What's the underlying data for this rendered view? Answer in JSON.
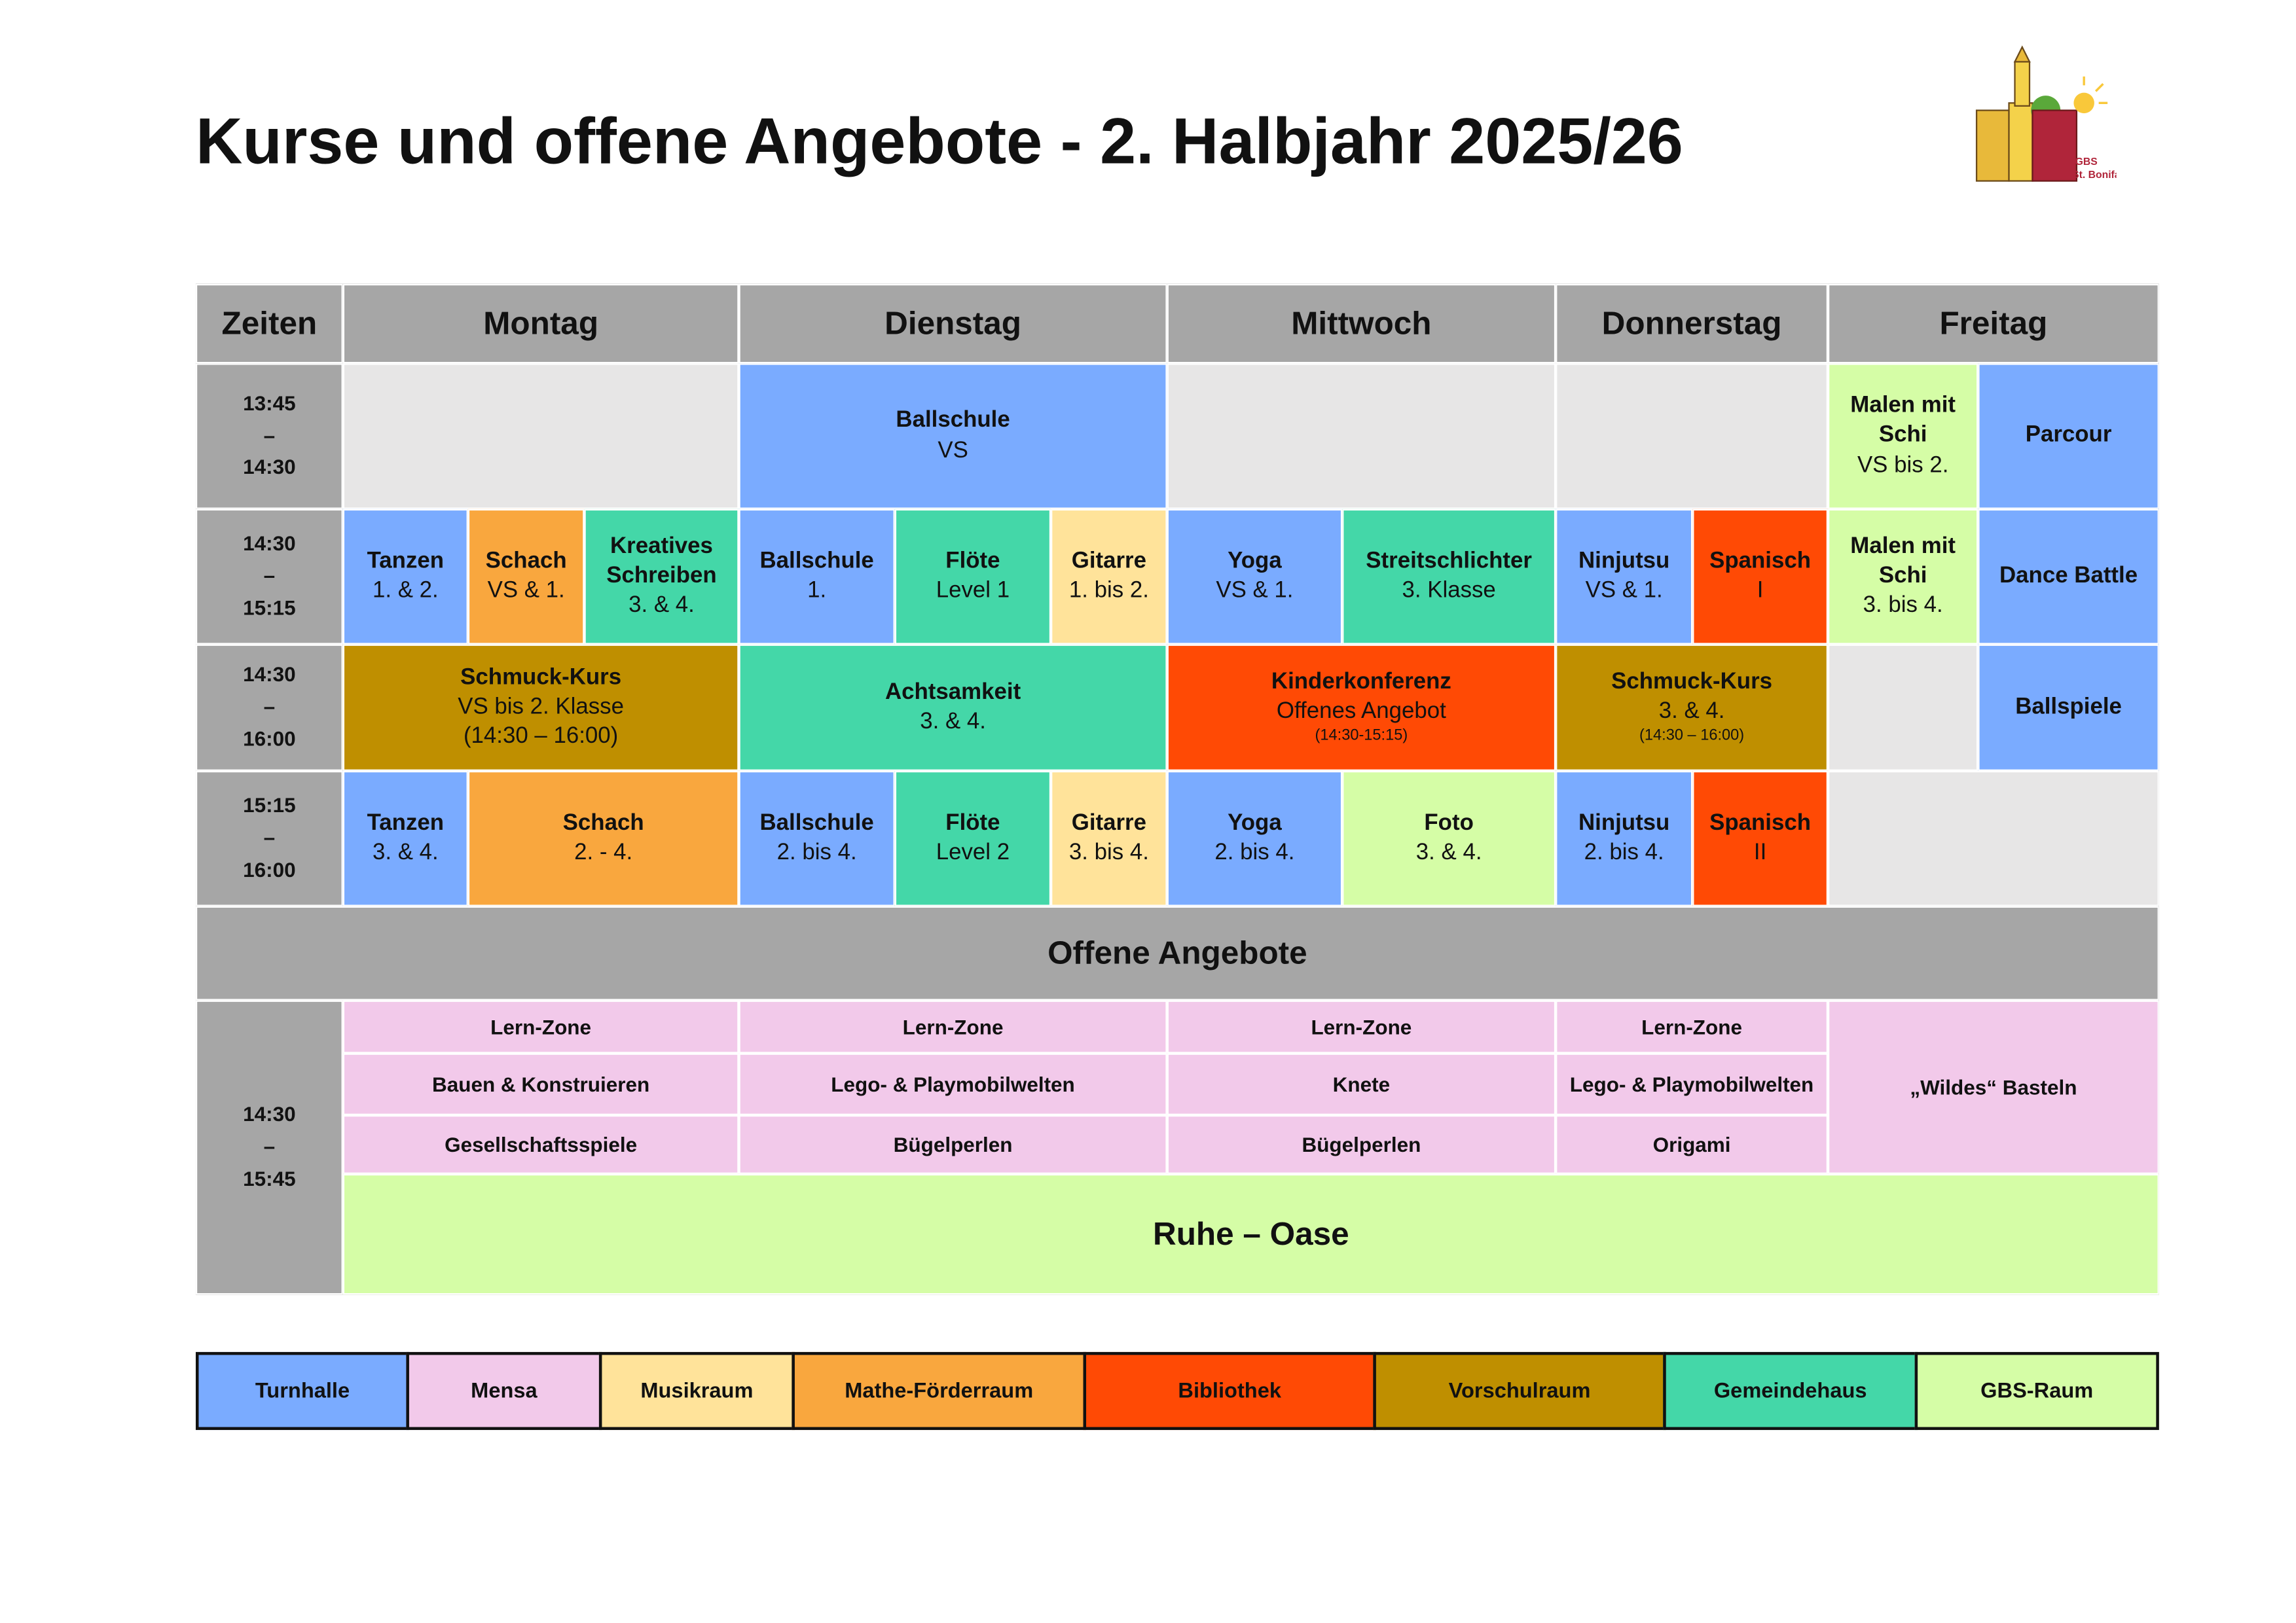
{
  "header": {
    "title": "Kurse und offene Angebote - 2. Halbjahr 2025/26",
    "logo_text": [
      "GBS",
      "St. Bonifatius"
    ]
  },
  "table": {
    "headers": [
      "Zeiten",
      "Montag",
      "Dienstag",
      "Mittwoch",
      "Donnerstag",
      "Freitag"
    ],
    "times": [
      [
        "13:45",
        "–",
        "14:30"
      ],
      [
        "14:30",
        "–",
        "15:15"
      ],
      [
        "14:30",
        "–",
        "16:00"
      ],
      [
        "15:15",
        "–",
        "16:00"
      ]
    ],
    "courses": [
      {
        "name": "Ballschule",
        "detail": "VS"
      },
      {
        "name": "Malen mit Schi",
        "detail": "VS bis 2."
      },
      {
        "name": "Parcour"
      },
      {
        "name": "Tanzen",
        "detail": "1. & 2."
      },
      {
        "name": "Schach",
        "detail": "VS & 1."
      },
      {
        "name": "Kreatives Schreiben",
        "detail": "3.  & 4."
      },
      {
        "name": "Ballschule",
        "detail": "1."
      },
      {
        "name": "Flöte",
        "detail": "Level 1"
      },
      {
        "name": "Gitarre",
        "detail": "1. bis 2."
      },
      {
        "name": "Yoga",
        "detail": "VS & 1."
      },
      {
        "name": "Streitschlichter",
        "detail": "3. Klasse"
      },
      {
        "name": "Ninjutsu",
        "detail": "VS & 1."
      },
      {
        "name": "Spanisch",
        "detail": "I"
      },
      {
        "name": "Malen mit Schi",
        "detail": "3. bis 4."
      },
      {
        "name": "Dance Battle"
      },
      {
        "name": "Schmuck-Kurs",
        "detail": "VS bis 2. Klasse",
        "note": "(14:30 – 16:00)"
      },
      {
        "name": "Achtsamkeit",
        "detail": "3. & 4."
      },
      {
        "name": "Kinderkonferenz",
        "detail": "Offenes Angebot",
        "note": "(14:30-15:15)"
      },
      {
        "name": "Schmuck-Kurs",
        "detail": "3. & 4.",
        "note": "(14:30 – 16:00)"
      },
      {
        "name": "Ballspiele"
      },
      {
        "name": "Tanzen",
        "detail": "3. & 4."
      },
      {
        "name": "Schach",
        "detail": "2. - 4."
      },
      {
        "name": "Ballschule",
        "detail": "2. bis 4."
      },
      {
        "name": "Flöte",
        "detail": "Level 2"
      },
      {
        "name": "Gitarre",
        "detail": "3. bis 4."
      },
      {
        "name": "Yoga",
        "detail": "2. bis 4."
      },
      {
        "name": "Foto",
        "detail": "3. & 4."
      },
      {
        "name": "Ninjutsu",
        "detail": "2. bis 4."
      },
      {
        "name": "Spanisch",
        "detail": "II"
      }
    ]
  },
  "open": {
    "title": "Offene Angebote",
    "time": [
      "14:30",
      "–",
      "15:45"
    ],
    "items": [
      "Lern-Zone",
      "Lern-Zone",
      "Lern-Zone",
      "Lern-Zone",
      "Bauen & Konstruieren",
      "Lego- & Playmobilwelten",
      "Knete",
      "Lego- & Playmobilwelten",
      "Gesellschaftsspiele",
      "Bügelperlen",
      "Bügelperlen",
      "Origami",
      "„Wildes“ Basteln"
    ],
    "rest": "Ruhe – Oase"
  },
  "legend": [
    "Turnhalle",
    "Mensa",
    "Musikraum",
    "Mathe-Förderraum",
    "Bibliothek",
    "Vorschulraum",
    "Gemeindehaus",
    "GBS-Raum"
  ]
}
